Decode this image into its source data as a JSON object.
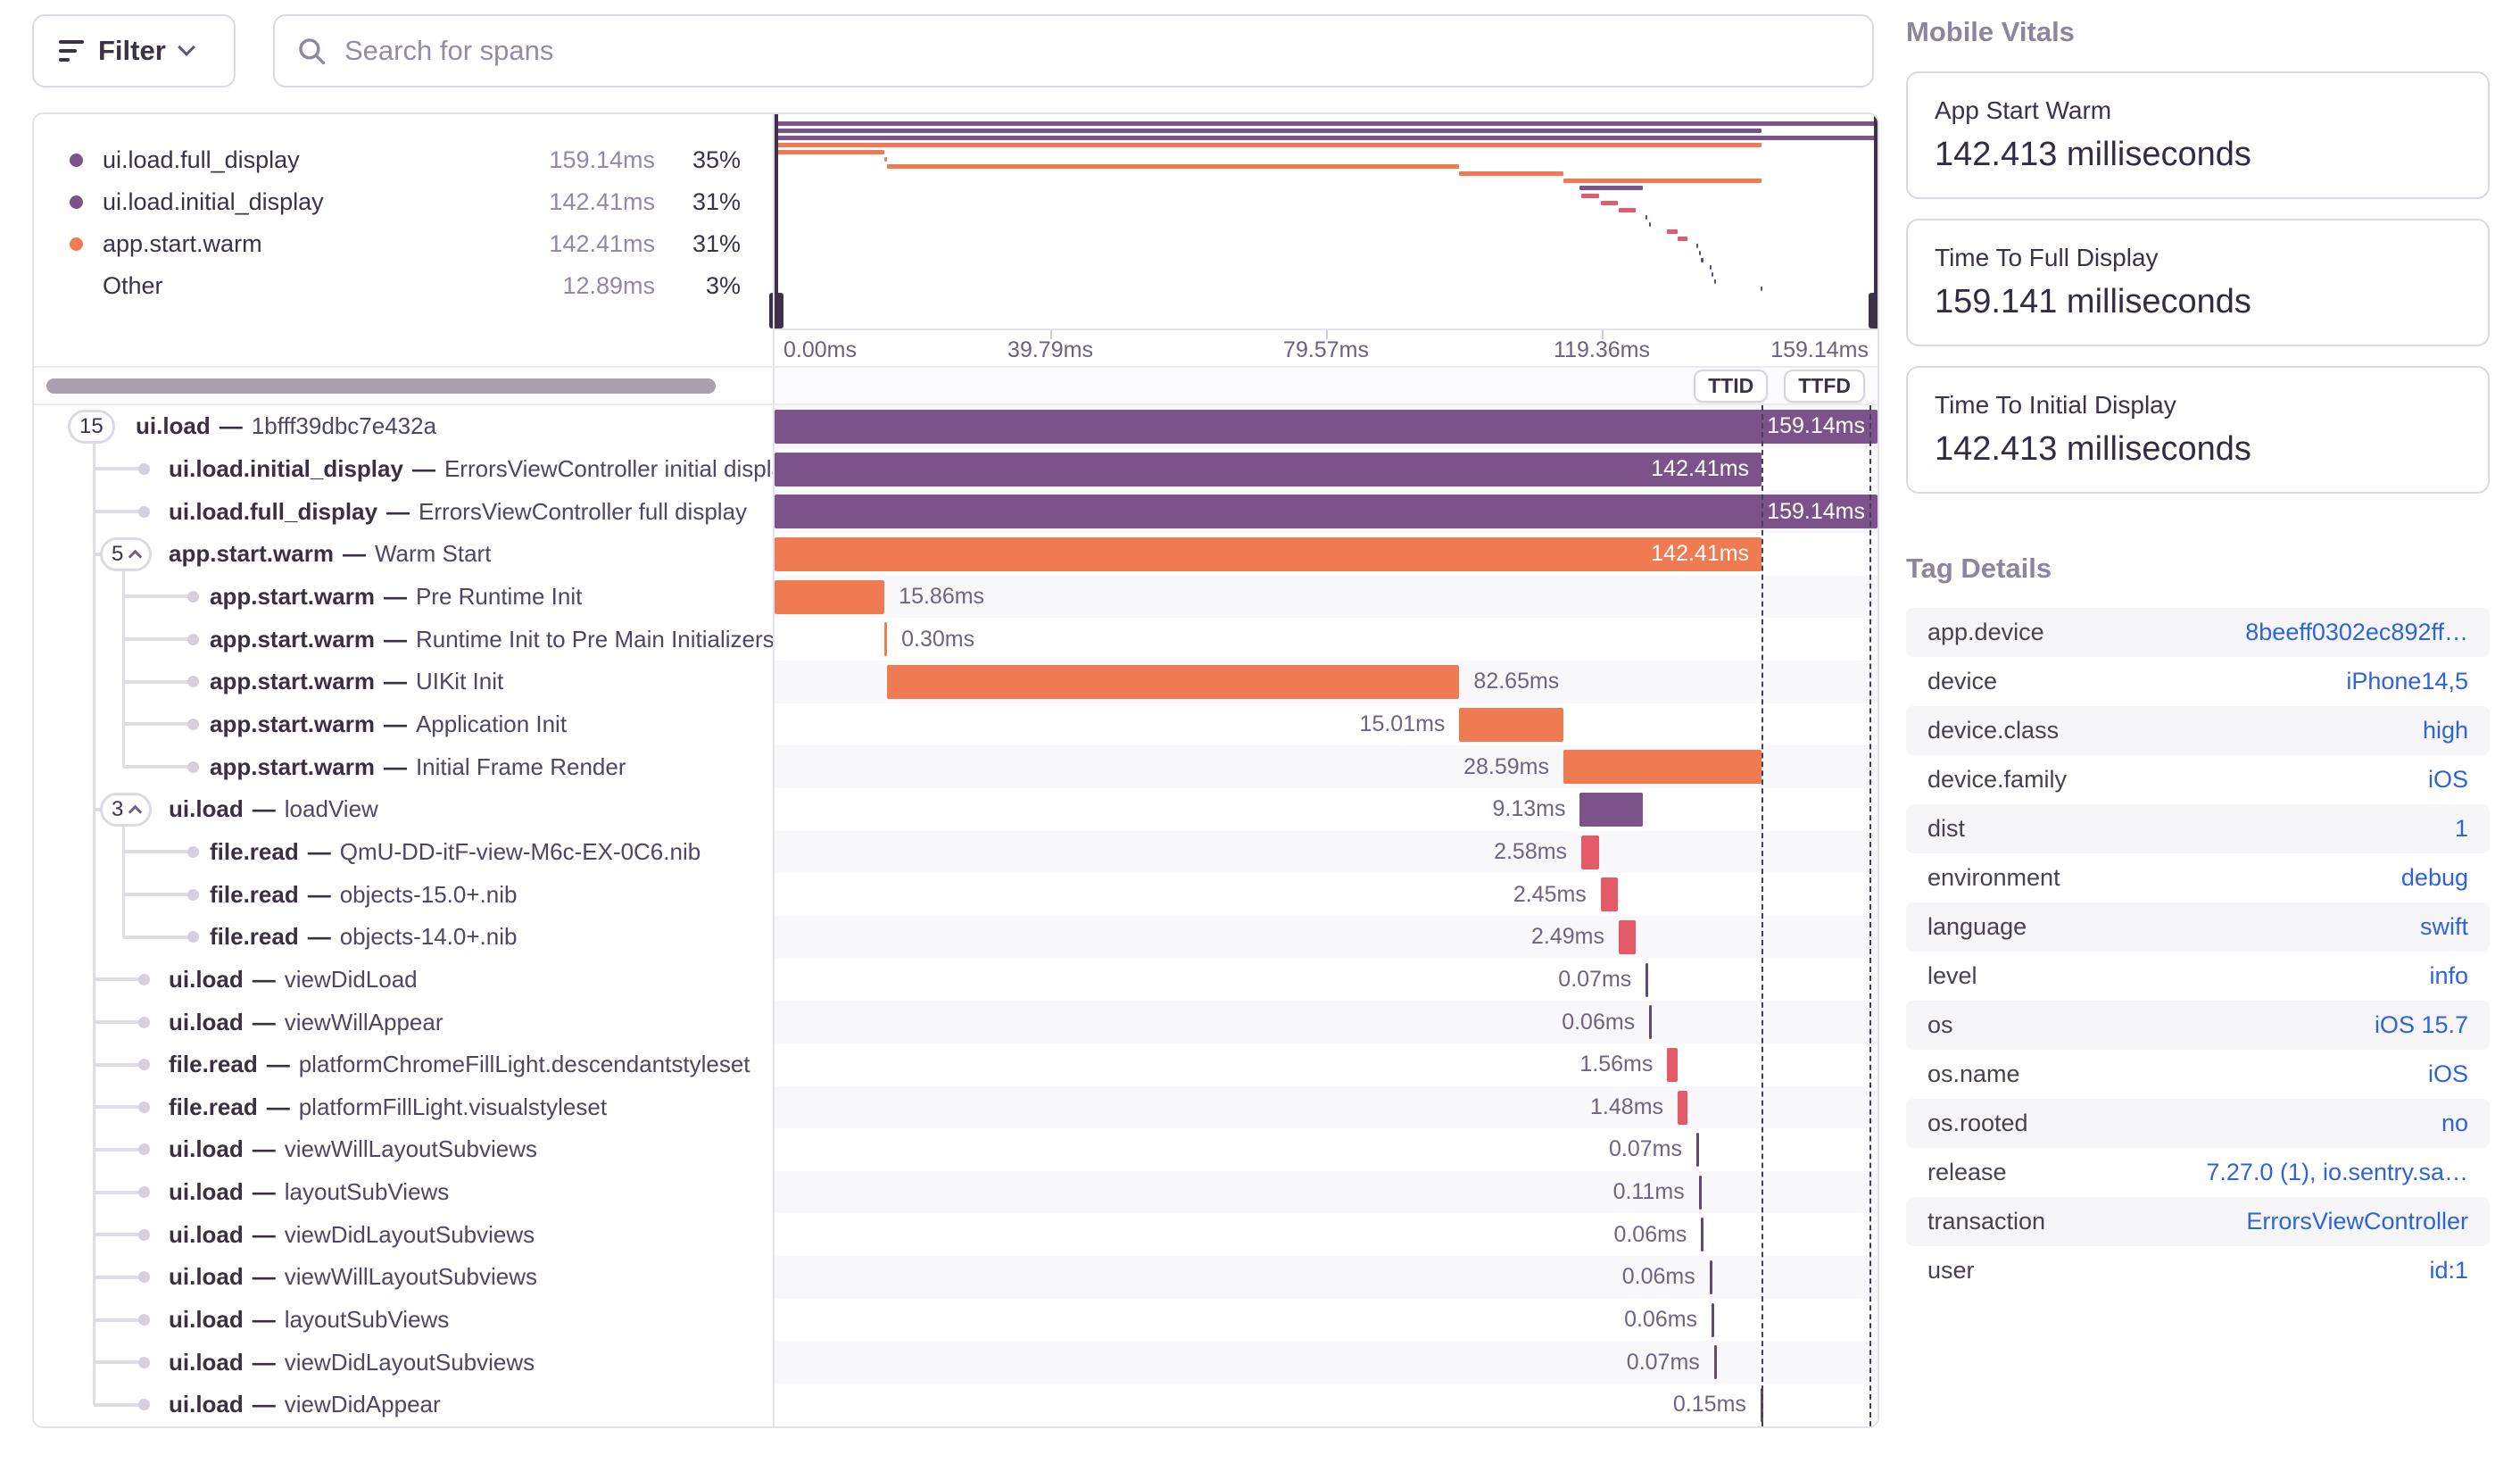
{
  "toolbar": {
    "filter_label": "Filter",
    "search_placeholder": "Search for spans"
  },
  "colors": {
    "purple": "#7B5289",
    "orange": "#EE7B52",
    "pink": "#E45A68",
    "tick": "#5D4B72",
    "link_blue": "#2F63D9"
  },
  "trace": {
    "total_ms": 159.141,
    "sep": "—",
    "ttid_pct": 89.49,
    "ttfd_pct": 99.3,
    "axis_ticks": [
      "0.00ms",
      "39.79ms",
      "79.57ms",
      "119.36ms",
      "159.14ms"
    ],
    "markers": {
      "ttid": "TTID",
      "ttfd": "TTFD"
    },
    "legend": [
      {
        "name": "ui.load.full_display",
        "dur": "159.14ms",
        "pct": "35%",
        "color": "purple"
      },
      {
        "name": "ui.load.initial_display",
        "dur": "142.41ms",
        "pct": "31%",
        "color": "purple"
      },
      {
        "name": "app.start.warm",
        "dur": "142.41ms",
        "pct": "31%",
        "color": "orange"
      },
      {
        "name": "Other",
        "dur": "12.89ms",
        "pct": "3%",
        "color": null
      }
    ],
    "spans": [
      {
        "op": "ui.load",
        "desc": "1bfff39dbc7e432a",
        "depth": 0,
        "badge": "15",
        "chevron": false,
        "start": 0,
        "dur": 159.14,
        "label": "159.14ms",
        "color": "purple",
        "label_pos": "inside"
      },
      {
        "op": "ui.load.initial_display",
        "desc": "ErrorsViewController initial display",
        "depth": 1,
        "badge": null,
        "start": 0,
        "dur": 142.41,
        "label": "142.41ms",
        "color": "purple",
        "label_pos": "inside"
      },
      {
        "op": "ui.load.full_display",
        "desc": "ErrorsViewController full display",
        "depth": 1,
        "badge": null,
        "start": 0,
        "dur": 159.14,
        "label": "159.14ms",
        "color": "purple",
        "label_pos": "inside"
      },
      {
        "op": "app.start.warm",
        "desc": "Warm Start",
        "depth": 1,
        "badge": "5",
        "chevron": true,
        "start": 0,
        "dur": 142.41,
        "label": "142.41ms",
        "color": "orange",
        "label_pos": "inside"
      },
      {
        "op": "app.start.warm",
        "desc": "Pre Runtime Init",
        "depth": 2,
        "badge": null,
        "start": 0,
        "dur": 15.86,
        "label": "15.86ms",
        "color": "orange",
        "label_pos": "right"
      },
      {
        "op": "app.start.warm",
        "desc": "Runtime Init to Pre Main Initializers",
        "depth": 2,
        "badge": null,
        "start": 15.86,
        "dur": 0.3,
        "label": "0.30ms",
        "color": "orange",
        "label_pos": "right"
      },
      {
        "op": "app.start.warm",
        "desc": "UIKit Init",
        "depth": 2,
        "badge": null,
        "start": 16.16,
        "dur": 82.65,
        "label": "82.65ms",
        "color": "orange",
        "label_pos": "right"
      },
      {
        "op": "app.start.warm",
        "desc": "Application Init",
        "depth": 2,
        "badge": null,
        "start": 98.81,
        "dur": 15.01,
        "label": "15.01ms",
        "color": "orange",
        "label_pos": "left"
      },
      {
        "op": "app.start.warm",
        "desc": "Initial Frame Render",
        "depth": 2,
        "badge": null,
        "start": 113.82,
        "dur": 28.59,
        "label": "28.59ms",
        "color": "orange",
        "label_pos": "left"
      },
      {
        "op": "ui.load",
        "desc": "loadView",
        "depth": 1,
        "badge": "3",
        "chevron": true,
        "start": 116.2,
        "dur": 9.13,
        "label": "9.13ms",
        "color": "purple",
        "label_pos": "left"
      },
      {
        "op": "file.read",
        "desc": "QmU-DD-itF-view-M6c-EX-0C6.nib",
        "depth": 2,
        "badge": null,
        "start": 116.4,
        "dur": 2.58,
        "label": "2.58ms",
        "color": "pink",
        "label_pos": "left"
      },
      {
        "op": "file.read",
        "desc": "objects-15.0+.nib",
        "depth": 2,
        "badge": null,
        "start": 119.2,
        "dur": 2.45,
        "label": "2.45ms",
        "color": "pink",
        "label_pos": "left"
      },
      {
        "op": "file.read",
        "desc": "objects-14.0+.nib",
        "depth": 2,
        "badge": null,
        "start": 121.8,
        "dur": 2.49,
        "label": "2.49ms",
        "color": "pink",
        "label_pos": "left"
      },
      {
        "op": "ui.load",
        "desc": "viewDidLoad",
        "depth": 1,
        "badge": null,
        "start": 125.7,
        "dur": 0.07,
        "label": "0.07ms",
        "color": "tick",
        "label_pos": "left"
      },
      {
        "op": "ui.load",
        "desc": "viewWillAppear",
        "depth": 1,
        "badge": null,
        "start": 126.2,
        "dur": 0.06,
        "label": "0.06ms",
        "color": "tick",
        "label_pos": "left"
      },
      {
        "op": "file.read",
        "desc": "platformChromeFillLight.descendantstyleset",
        "depth": 1,
        "badge": null,
        "start": 128.8,
        "dur": 1.56,
        "label": "1.56ms",
        "color": "pink",
        "label_pos": "left"
      },
      {
        "op": "file.read",
        "desc": "platformFillLight.visualstyleset",
        "depth": 1,
        "badge": null,
        "start": 130.3,
        "dur": 1.48,
        "label": "1.48ms",
        "color": "pink",
        "label_pos": "left"
      },
      {
        "op": "ui.load",
        "desc": "viewWillLayoutSubviews",
        "depth": 1,
        "badge": null,
        "start": 133.0,
        "dur": 0.07,
        "label": "0.07ms",
        "color": "tick",
        "label_pos": "left"
      },
      {
        "op": "ui.load",
        "desc": "layoutSubViews",
        "depth": 1,
        "badge": null,
        "start": 133.35,
        "dur": 0.11,
        "label": "0.11ms",
        "color": "tick",
        "label_pos": "left"
      },
      {
        "op": "ui.load",
        "desc": "viewDidLayoutSubviews",
        "depth": 1,
        "badge": null,
        "start": 133.7,
        "dur": 0.06,
        "label": "0.06ms",
        "color": "tick",
        "label_pos": "left"
      },
      {
        "op": "ui.load",
        "desc": "viewWillLayoutSubviews",
        "depth": 1,
        "badge": null,
        "start": 134.9,
        "dur": 0.06,
        "label": "0.06ms",
        "color": "tick",
        "label_pos": "left"
      },
      {
        "op": "ui.load",
        "desc": "layoutSubViews",
        "depth": 1,
        "badge": null,
        "start": 135.2,
        "dur": 0.06,
        "label": "0.06ms",
        "color": "tick",
        "label_pos": "left"
      },
      {
        "op": "ui.load",
        "desc": "viewDidLayoutSubviews",
        "depth": 1,
        "badge": null,
        "start": 135.55,
        "dur": 0.07,
        "label": "0.07ms",
        "color": "tick",
        "label_pos": "left"
      },
      {
        "op": "ui.load",
        "desc": "viewDidAppear",
        "depth": 1,
        "badge": null,
        "start": 142.26,
        "dur": 0.15,
        "label": "0.15ms",
        "color": "tick",
        "label_pos": "left"
      }
    ]
  },
  "sidebar": {
    "vitals_title": "Mobile Vitals",
    "vitals": [
      {
        "label": "App Start Warm",
        "value": "142.413 milliseconds"
      },
      {
        "label": "Time To Full Display",
        "value": "159.141 milliseconds"
      },
      {
        "label": "Time To Initial Display",
        "value": "142.413 milliseconds"
      }
    ],
    "tags_title": "Tag Details",
    "tags": [
      {
        "key": "app.device",
        "value": "8beeff0302ec892ff…"
      },
      {
        "key": "device",
        "value": "iPhone14,5"
      },
      {
        "key": "device.class",
        "value": "high"
      },
      {
        "key": "device.family",
        "value": "iOS"
      },
      {
        "key": "dist",
        "value": "1"
      },
      {
        "key": "environment",
        "value": "debug"
      },
      {
        "key": "language",
        "value": "swift"
      },
      {
        "key": "level",
        "value": "info"
      },
      {
        "key": "os",
        "value": "iOS 15.7"
      },
      {
        "key": "os.name",
        "value": "iOS"
      },
      {
        "key": "os.rooted",
        "value": "no"
      },
      {
        "key": "release",
        "value": "7.27.0 (1), io.sentry.sa…"
      },
      {
        "key": "transaction",
        "value": "ErrorsViewController"
      },
      {
        "key": "user",
        "value": "id:1"
      }
    ]
  }
}
